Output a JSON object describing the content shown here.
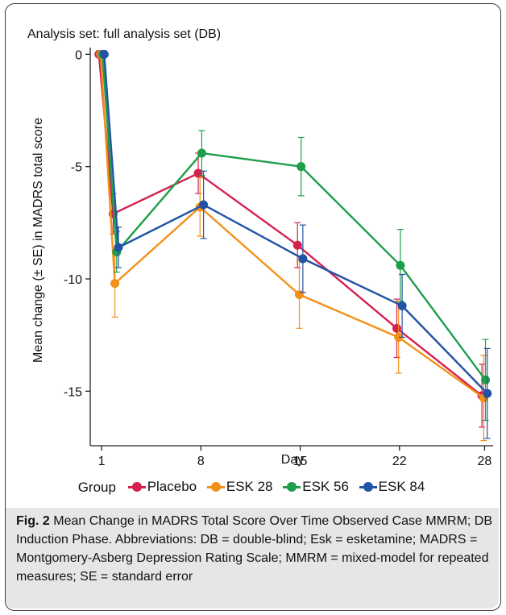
{
  "chart_data": {
    "type": "line",
    "title": "Analysis set: full analysis set (DB)",
    "xlabel": "Day",
    "ylabel": "Mean change (± SE) in MADRS total score",
    "x": [
      1,
      2,
      8,
      15,
      22,
      28
    ],
    "x_ticks": [
      1,
      8,
      15,
      22,
      28
    ],
    "y_ticks": [
      0,
      -5,
      -10,
      -15
    ],
    "xlim": [
      0.2,
      28.6
    ],
    "ylim": [
      -17.5,
      0.3
    ],
    "grid": false,
    "legend": {
      "title": "Group",
      "placement": "bottom"
    },
    "series": [
      {
        "name": "Placebo",
        "color": "#d6204f",
        "values": [
          0,
          -7.1,
          -5.3,
          -8.5,
          -12.2,
          -15.2
        ],
        "se": [
          0,
          0.9,
          0.9,
          1.0,
          1.3,
          1.4
        ]
      },
      {
        "name": "ESK 28",
        "color": "#f39018",
        "values": [
          0,
          -10.2,
          -6.8,
          -10.7,
          -12.6,
          -15.3
        ],
        "se": [
          0,
          1.5,
          1.3,
          1.5,
          1.6,
          1.9
        ]
      },
      {
        "name": "ESK 56",
        "color": "#1e9e4a",
        "values": [
          0,
          -8.8,
          -4.4,
          -5.0,
          -9.4,
          -14.5
        ],
        "se": [
          0,
          0.9,
          1.0,
          1.3,
          1.6,
          1.8
        ]
      },
      {
        "name": "ESK 84",
        "color": "#2153a5",
        "values": [
          0,
          -8.6,
          -6.7,
          -9.1,
          -11.2,
          -15.1
        ],
        "se": [
          0,
          0.9,
          1.5,
          1.5,
          1.4,
          2.0
        ]
      }
    ]
  },
  "caption": {
    "label": "Fig. 2",
    "text": "Mean Change in MADRS Total Score Over Time Observed Case MMRM; DB Induction Phase. Abbreviations: DB = double-blind; Esk = esketamine; MADRS = Montgomery-Asberg Depression Rating Scale; MMRM = mixed-model for repeated measures; SE = standard error"
  }
}
